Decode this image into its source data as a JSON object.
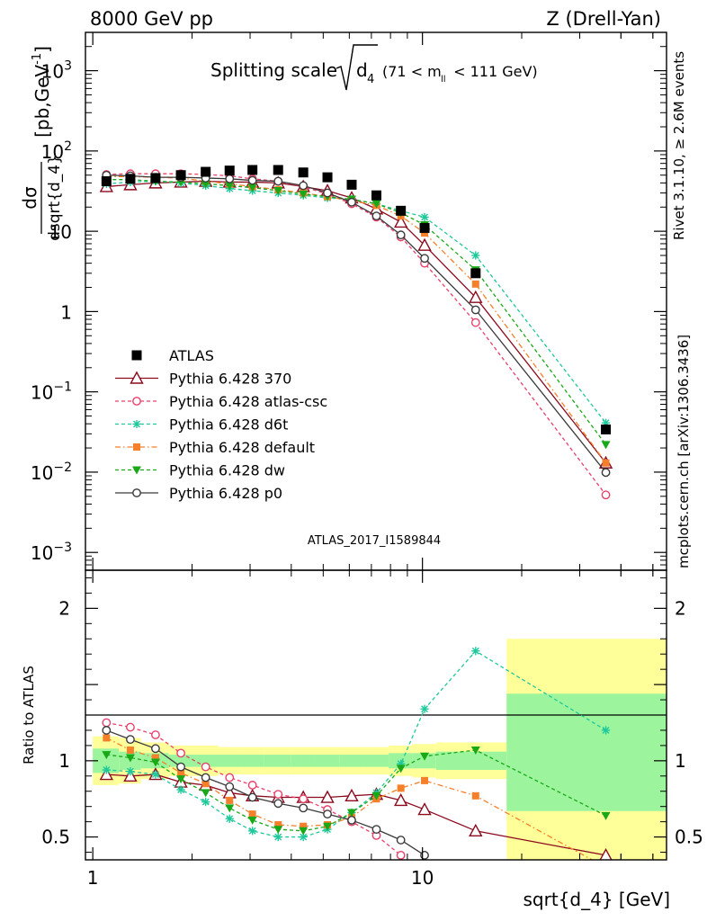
{
  "header": {
    "left_label": "8000 GeV pp",
    "right_label": "Z (Drell-Yan)"
  },
  "title": {
    "prefix": "Splitting scale",
    "root_var": "d",
    "root_sub": "4",
    "mass_window": "(71 < m",
    "mass_sub": "ll",
    "mass_window_end": " < 111 GeV)"
  },
  "side_labels": {
    "rivet": "Rivet 3.1.10, ≥ 2.6M events",
    "mcplots": "mcplots.cern.ch [arXiv:1306.3436]"
  },
  "analysis_id": "ATLAS_2017_I1589844",
  "colors": {
    "atlas": "#000000",
    "p370": "#8b0a1e",
    "atlascsc": "#e8406a",
    "d6t": "#1ec89a",
    "default": "#f57f2a",
    "dw": "#18a818",
    "p0": "#3a3a3a",
    "band_inner": "#9cf59c",
    "band_outer": "#ffff99"
  },
  "chart_data": [
    {
      "type": "line",
      "panel": "main",
      "ylabel": "dσ / dsqrt{d_4} [pb,GeV⁻¹]",
      "xscale": "log",
      "yscale": "log",
      "xlim": [
        0.95,
        55
      ],
      "ylim": [
        0.0006,
        3000
      ],
      "x_ticks": [],
      "y_ticks": [
        {
          "v": 0.001,
          "base": "10",
          "exp": "−3"
        },
        {
          "v": 0.01,
          "base": "10",
          "exp": "−2"
        },
        {
          "v": 0.1,
          "base": "10",
          "exp": "−1"
        },
        {
          "v": 1,
          "base": "1",
          "exp": ""
        },
        {
          "v": 10,
          "base": "10",
          "exp": ""
        },
        {
          "v": 100,
          "base": "10",
          "exp": "2"
        },
        {
          "v": 1000,
          "base": "10",
          "exp": "3"
        }
      ],
      "legend_position": "left-middle",
      "atlas": {
        "name": "ATLAS",
        "bins": [
          [
            1.0,
            1.2
          ],
          [
            1.2,
            1.4
          ],
          [
            1.4,
            1.7
          ],
          [
            1.7,
            2.0
          ],
          [
            2.0,
            2.4
          ],
          [
            2.4,
            2.8
          ],
          [
            2.8,
            3.3
          ],
          [
            3.3,
            4.0
          ],
          [
            4.0,
            4.7
          ],
          [
            4.7,
            5.6
          ],
          [
            5.6,
            6.6
          ],
          [
            6.6,
            7.9
          ],
          [
            7.9,
            9.3
          ],
          [
            9.3,
            11.0
          ],
          [
            11.0,
            18.0
          ],
          [
            18.0,
            55.0
          ]
        ],
        "x": [
          1.1,
          1.3,
          1.55,
          1.85,
          2.2,
          2.6,
          3.05,
          3.65,
          4.35,
          5.15,
          6.1,
          7.25,
          8.6,
          10.15,
          14.5,
          36.0
        ],
        "y": [
          42,
          45,
          46,
          50,
          55,
          57,
          58,
          58,
          54,
          47,
          38,
          28,
          18,
          11,
          3.0,
          0.034
        ]
      },
      "series": [
        {
          "name": "Pythia 6.428 370",
          "key": "p370",
          "marker": "triangle-open",
          "dash": "",
          "x": [
            1.1,
            1.3,
            1.55,
            1.85,
            2.2,
            2.6,
            3.05,
            3.65,
            4.35,
            5.15,
            6.1,
            7.25,
            8.6,
            10.15,
            14.5,
            36.0
          ],
          "y": [
            36,
            38,
            40,
            41,
            42,
            41,
            41,
            40,
            36,
            32,
            26,
            19,
            13,
            6.7,
            1.5,
            0.013
          ]
        },
        {
          "name": "Pythia 6.428 atlas-csc",
          "key": "atlascsc",
          "marker": "circle-open",
          "dash": "4,3",
          "x": [
            1.1,
            1.3,
            1.55,
            1.85,
            2.2,
            2.6,
            3.05,
            3.65,
            4.35,
            5.15,
            6.1,
            7.25,
            8.6,
            10.15,
            14.5,
            36.0
          ],
          "y": [
            51,
            52,
            52,
            52,
            51,
            49,
            45,
            42,
            36,
            29,
            22,
            15,
            8.5,
            4.0,
            0.73,
            0.0052
          ]
        },
        {
          "name": "Pythia 6.428 d6t",
          "key": "d6t",
          "marker": "star",
          "dash": "4,3",
          "x": [
            1.1,
            1.3,
            1.55,
            1.85,
            2.2,
            2.6,
            3.05,
            3.65,
            4.35,
            5.15,
            6.1,
            7.25,
            8.6,
            10.15,
            14.5,
            36.0
          ],
          "y": [
            39,
            41,
            42,
            40,
            37,
            34,
            32,
            30,
            28,
            26,
            25,
            22,
            18,
            15,
            5.0,
            0.041
          ]
        },
        {
          "name": "Pythia 6.428 default",
          "key": "default",
          "marker": "square",
          "dash": "6,3,1.5,3",
          "x": [
            1.1,
            1.3,
            1.55,
            1.85,
            2.2,
            2.6,
            3.05,
            3.65,
            4.35,
            5.15,
            6.1,
            7.25,
            8.6,
            10.15,
            14.5,
            36.0
          ],
          "y": [
            48,
            48,
            47,
            46,
            42,
            39,
            36,
            33,
            30,
            27,
            24,
            21,
            15.5,
            9.5,
            2.2,
            0.013
          ]
        },
        {
          "name": "Pythia 6.428 dw",
          "key": "dw",
          "marker": "triangle-down",
          "dash": "4,3",
          "x": [
            1.1,
            1.3,
            1.55,
            1.85,
            2.2,
            2.6,
            3.05,
            3.65,
            4.35,
            5.15,
            6.1,
            7.25,
            8.6,
            10.15,
            14.5,
            36.0
          ],
          "y": [
            44,
            44,
            42,
            41,
            39,
            37,
            35,
            32,
            29,
            27,
            25,
            22,
            17,
            12,
            3.3,
            0.022
          ]
        },
        {
          "name": "Pythia 6.428 p0",
          "key": "p0",
          "marker": "circle-open",
          "dash": "",
          "x": [
            1.1,
            1.3,
            1.55,
            1.85,
            2.2,
            2.6,
            3.05,
            3.65,
            4.35,
            5.15,
            6.1,
            7.25,
            8.6,
            10.15,
            14.5,
            36.0
          ],
          "y": [
            50,
            49,
            47,
            47,
            46,
            45,
            43,
            42,
            37,
            30,
            23,
            15.5,
            9,
            4.6,
            1.05,
            0.0099
          ]
        }
      ]
    },
    {
      "type": "line",
      "panel": "ratio",
      "ylabel": "Ratio to ATLAS",
      "xlabel": "sqrt{d_4} [GeV]",
      "xscale": "log",
      "xlim": [
        0.95,
        55
      ],
      "ylim": [
        0.35,
        2.25
      ],
      "x_ticks": [
        {
          "v": 1,
          "label": "1"
        },
        {
          "v": 10,
          "label": "10"
        }
      ],
      "y_ticks": [
        {
          "v": 0.5,
          "label": "0.5"
        },
        {
          "v": 1,
          "label": "1"
        },
        {
          "v": 2,
          "label": "2"
        }
      ],
      "bands": {
        "edges": [
          1.0,
          1.2,
          1.4,
          1.7,
          2.0,
          2.4,
          2.8,
          3.3,
          4.0,
          4.7,
          5.6,
          6.6,
          7.9,
          9.3,
          11.0,
          18.0,
          55.0
        ],
        "inner_lo": [
          0.92,
          0.94,
          0.95,
          0.96,
          0.96,
          0.96,
          0.96,
          0.96,
          0.96,
          0.96,
          0.96,
          0.96,
          0.95,
          0.95,
          0.94,
          0.67
        ],
        "inner_hi": [
          1.08,
          1.06,
          1.05,
          1.04,
          1.04,
          1.04,
          1.04,
          1.04,
          1.04,
          1.04,
          1.04,
          1.04,
          1.05,
          1.05,
          1.06,
          1.44
        ],
        "outer_lo": [
          0.84,
          0.85,
          0.88,
          0.9,
          0.9,
          0.91,
          0.91,
          0.91,
          0.91,
          0.91,
          0.91,
          0.91,
          0.9,
          0.89,
          0.88,
          0.3
        ],
        "outer_hi": [
          1.16,
          1.15,
          1.12,
          1.1,
          1.1,
          1.09,
          1.09,
          1.09,
          1.09,
          1.09,
          1.09,
          1.09,
          1.1,
          1.11,
          1.12,
          1.8
        ]
      },
      "series": [
        {
          "name": "Pythia 6.428 370",
          "key": "p370",
          "marker": "triangle-open",
          "dash": "",
          "x": [
            1.1,
            1.3,
            1.55,
            1.85,
            2.2,
            2.6,
            3.05,
            3.65,
            4.35,
            5.15,
            6.1,
            7.25,
            8.6,
            10.15,
            14.5,
            36.0
          ],
          "y": [
            0.91,
            0.9,
            0.91,
            0.86,
            0.84,
            0.79,
            0.77,
            0.76,
            0.76,
            0.76,
            0.77,
            0.78,
            0.74,
            0.68,
            0.54,
            0.38
          ]
        },
        {
          "name": "Pythia 6.428 atlas-csc",
          "key": "atlascsc",
          "marker": "circle-open",
          "dash": "4,3",
          "x": [
            1.1,
            1.3,
            1.55,
            1.85,
            2.2,
            2.6,
            3.05,
            3.65,
            4.35,
            5.15,
            6.1,
            7.25,
            8.6,
            10.15
          ],
          "y": [
            1.25,
            1.22,
            1.17,
            1.05,
            0.96,
            0.89,
            0.84,
            0.78,
            0.75,
            0.68,
            0.6,
            0.51,
            0.38,
            0.27
          ]
        },
        {
          "name": "Pythia 6.428 d6t",
          "key": "d6t",
          "marker": "star",
          "dash": "4,3",
          "x": [
            1.1,
            1.3,
            1.55,
            1.85,
            2.2,
            2.6,
            3.05,
            3.65,
            4.35,
            5.15,
            6.1,
            7.25,
            8.6,
            10.15,
            14.5,
            36.0
          ],
          "y": [
            0.94,
            0.93,
            0.91,
            0.81,
            0.73,
            0.62,
            0.54,
            0.5,
            0.5,
            0.55,
            0.66,
            0.79,
            0.98,
            1.34,
            1.72,
            1.2
          ]
        },
        {
          "name": "Pythia 6.428 default",
          "key": "default",
          "marker": "square",
          "dash": "6,3,1.5,3",
          "x": [
            1.1,
            1.3,
            1.55,
            1.85,
            2.2,
            2.6,
            3.05,
            3.65,
            4.35,
            5.15,
            6.1,
            7.25,
            8.6,
            10.15,
            14.5,
            36.0
          ],
          "y": [
            1.15,
            1.07,
            1.02,
            0.92,
            0.85,
            0.74,
            0.65,
            0.58,
            0.57,
            0.58,
            0.63,
            0.75,
            0.82,
            0.87,
            0.77,
            0.3
          ]
        },
        {
          "name": "Pythia 6.428 dw",
          "key": "dw",
          "marker": "triangle-down",
          "dash": "4,3",
          "x": [
            1.1,
            1.3,
            1.55,
            1.85,
            2.2,
            2.6,
            3.05,
            3.65,
            4.35,
            5.15,
            6.1,
            7.25,
            8.6,
            10.15,
            14.5,
            36.0
          ],
          "y": [
            1.04,
            1.02,
            0.99,
            0.88,
            0.79,
            0.69,
            0.61,
            0.55,
            0.54,
            0.57,
            0.66,
            0.77,
            0.95,
            1.03,
            1.07,
            0.64
          ]
        },
        {
          "name": "Pythia 6.428 p0",
          "key": "p0",
          "marker": "circle-open",
          "dash": "",
          "x": [
            1.1,
            1.3,
            1.55,
            1.85,
            2.2,
            2.6,
            3.05,
            3.65,
            4.35,
            5.15,
            6.1,
            7.25,
            8.6,
            10.15
          ],
          "y": [
            1.2,
            1.14,
            1.08,
            0.96,
            0.89,
            0.83,
            0.76,
            0.72,
            0.69,
            0.65,
            0.61,
            0.55,
            0.48,
            0.38
          ]
        }
      ]
    }
  ]
}
